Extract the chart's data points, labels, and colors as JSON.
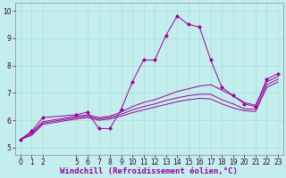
{
  "xlabel": "Windchill (Refroidissement éolien,°C)",
  "bg_color": "#c4eeed",
  "line_color": "#990099",
  "xlim": [
    -0.5,
    23.5
  ],
  "ylim": [
    4.75,
    10.3
  ],
  "xticks": [
    0,
    1,
    2,
    5,
    6,
    7,
    8,
    9,
    10,
    11,
    12,
    13,
    14,
    15,
    16,
    17,
    18,
    19,
    20,
    21,
    22,
    23
  ],
  "yticks": [
    5,
    6,
    7,
    8,
    9,
    10
  ],
  "main_line": {
    "x": [
      0,
      1,
      2,
      5,
      6,
      7,
      8,
      9,
      10,
      11,
      12,
      13,
      14,
      15,
      16,
      17,
      18,
      19,
      20,
      21,
      22,
      23
    ],
    "y": [
      5.3,
      5.6,
      6.1,
      6.2,
      6.3,
      5.7,
      5.7,
      6.4,
      7.4,
      8.2,
      8.2,
      9.1,
      9.8,
      9.5,
      9.4,
      8.2,
      7.2,
      6.9,
      6.6,
      6.5,
      7.5,
      7.7
    ]
  },
  "smooth_lines": [
    {
      "x": [
        0,
        1,
        2,
        5,
        6,
        7,
        8,
        9,
        10,
        11,
        12,
        13,
        14,
        15,
        16,
        17,
        18,
        19,
        20,
        21,
        22,
        23
      ],
      "y": [
        5.3,
        5.55,
        5.95,
        6.15,
        6.2,
        6.1,
        6.15,
        6.3,
        6.5,
        6.65,
        6.75,
        6.9,
        7.05,
        7.15,
        7.25,
        7.3,
        7.1,
        6.9,
        6.65,
        6.55,
        7.4,
        7.6
      ]
    },
    {
      "x": [
        0,
        1,
        2,
        5,
        6,
        7,
        8,
        9,
        10,
        11,
        12,
        13,
        14,
        15,
        16,
        17,
        18,
        19,
        20,
        21,
        22,
        23
      ],
      "y": [
        5.3,
        5.5,
        5.9,
        6.1,
        6.15,
        6.05,
        6.1,
        6.22,
        6.38,
        6.5,
        6.6,
        6.72,
        6.82,
        6.9,
        6.95,
        6.95,
        6.75,
        6.6,
        6.42,
        6.4,
        7.3,
        7.5
      ]
    },
    {
      "x": [
        0,
        1,
        2,
        5,
        6,
        7,
        8,
        9,
        10,
        11,
        12,
        13,
        14,
        15,
        16,
        17,
        18,
        19,
        20,
        21,
        22,
        23
      ],
      "y": [
        5.3,
        5.45,
        5.85,
        6.05,
        6.1,
        6.0,
        6.05,
        6.15,
        6.28,
        6.38,
        6.48,
        6.58,
        6.68,
        6.75,
        6.8,
        6.78,
        6.6,
        6.45,
        6.35,
        6.32,
        7.2,
        7.4
      ]
    }
  ],
  "grid_color": "#a8dada",
  "tick_fontsize": 5.5,
  "xlabel_fontsize": 6.5
}
